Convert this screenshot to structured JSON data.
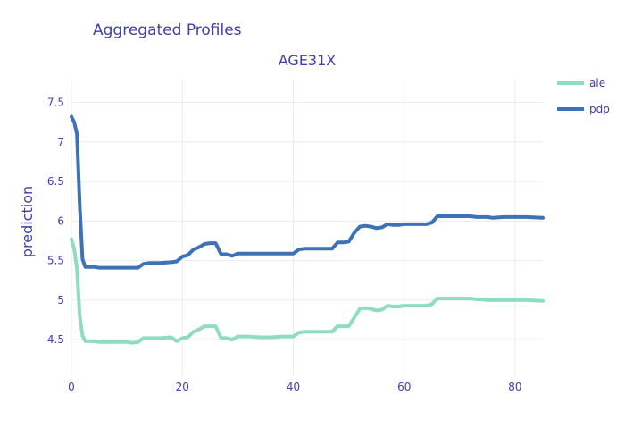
{
  "chart_data": {
    "type": "line",
    "title": "Aggregated Profiles",
    "subtitle": "AGE31X",
    "xlabel": "",
    "ylabel": "prediction",
    "xlim": [
      0,
      85
    ],
    "ylim": [
      4.05,
      7.8
    ],
    "xticks": [
      0,
      20,
      40,
      60,
      80
    ],
    "xtick_labels": [
      "0",
      "20",
      "40",
      "60",
      "80"
    ],
    "yticks": [
      4.5,
      5,
      5.5,
      6,
      6.5,
      7,
      7.5
    ],
    "ytick_labels": [
      "4.5",
      "5",
      "5.5",
      "6",
      "6.5",
      "7",
      "7.5"
    ],
    "grid": true,
    "legend_position": "top-right",
    "series": [
      {
        "name": "ale",
        "color": "#8fdcc1",
        "x": [
          0,
          0.5,
          1,
          1.5,
          2,
          2.5,
          3,
          4,
          5,
          6,
          8,
          10,
          11,
          12,
          13,
          14,
          16,
          18,
          19,
          20,
          21,
          22,
          23,
          24,
          25,
          26,
          27,
          28,
          29,
          30,
          32,
          34,
          36,
          38,
          40,
          41,
          42,
          45,
          46,
          47,
          48,
          49,
          50,
          51,
          52,
          53,
          54,
          55,
          56,
          57,
          58,
          59,
          60,
          61,
          62,
          63,
          64,
          65,
          66,
          67,
          70,
          72,
          73,
          74,
          75,
          76,
          78,
          80,
          82,
          85
        ],
        "y": [
          5.77,
          5.65,
          5.4,
          4.8,
          4.55,
          4.48,
          4.48,
          4.48,
          4.47,
          4.47,
          4.47,
          4.47,
          4.46,
          4.47,
          4.52,
          4.52,
          4.52,
          4.53,
          4.48,
          4.52,
          4.53,
          4.6,
          4.63,
          4.67,
          4.67,
          4.67,
          4.52,
          4.52,
          4.5,
          4.54,
          4.54,
          4.53,
          4.53,
          4.54,
          4.54,
          4.59,
          4.6,
          4.6,
          4.6,
          4.6,
          4.67,
          4.67,
          4.67,
          4.78,
          4.89,
          4.9,
          4.89,
          4.87,
          4.88,
          4.93,
          4.92,
          4.92,
          4.93,
          4.93,
          4.93,
          4.93,
          4.93,
          4.95,
          5.02,
          5.02,
          5.02,
          5.02,
          5.01,
          5.01,
          5.0,
          5.0,
          5.0,
          5.0,
          5.0,
          4.99
        ]
      },
      {
        "name": "pdp",
        "color": "#3d72b7",
        "x": [
          0,
          0.5,
          1,
          1.5,
          2,
          2.5,
          3,
          4,
          5,
          6,
          8,
          10,
          11,
          12,
          13,
          14,
          16,
          18,
          19,
          20,
          21,
          22,
          23,
          24,
          25,
          26,
          27,
          28,
          29,
          30,
          32,
          34,
          36,
          38,
          40,
          41,
          42,
          45,
          46,
          47,
          48,
          49,
          50,
          51,
          52,
          53,
          54,
          55,
          56,
          57,
          58,
          59,
          60,
          61,
          62,
          63,
          64,
          65,
          66,
          67,
          70,
          72,
          73,
          74,
          75,
          76,
          78,
          80,
          82,
          85
        ],
        "y": [
          7.32,
          7.25,
          7.1,
          6.2,
          5.52,
          5.42,
          5.42,
          5.42,
          5.41,
          5.41,
          5.41,
          5.41,
          5.41,
          5.41,
          5.46,
          5.47,
          5.47,
          5.48,
          5.49,
          5.55,
          5.57,
          5.64,
          5.67,
          5.71,
          5.72,
          5.72,
          5.58,
          5.58,
          5.56,
          5.59,
          5.59,
          5.59,
          5.59,
          5.59,
          5.59,
          5.64,
          5.65,
          5.65,
          5.65,
          5.65,
          5.73,
          5.73,
          5.74,
          5.85,
          5.93,
          5.94,
          5.93,
          5.91,
          5.92,
          5.96,
          5.95,
          5.95,
          5.96,
          5.96,
          5.96,
          5.96,
          5.96,
          5.98,
          6.06,
          6.06,
          6.06,
          6.06,
          6.05,
          6.05,
          6.05,
          6.04,
          6.05,
          6.05,
          6.05,
          6.04
        ]
      }
    ]
  }
}
